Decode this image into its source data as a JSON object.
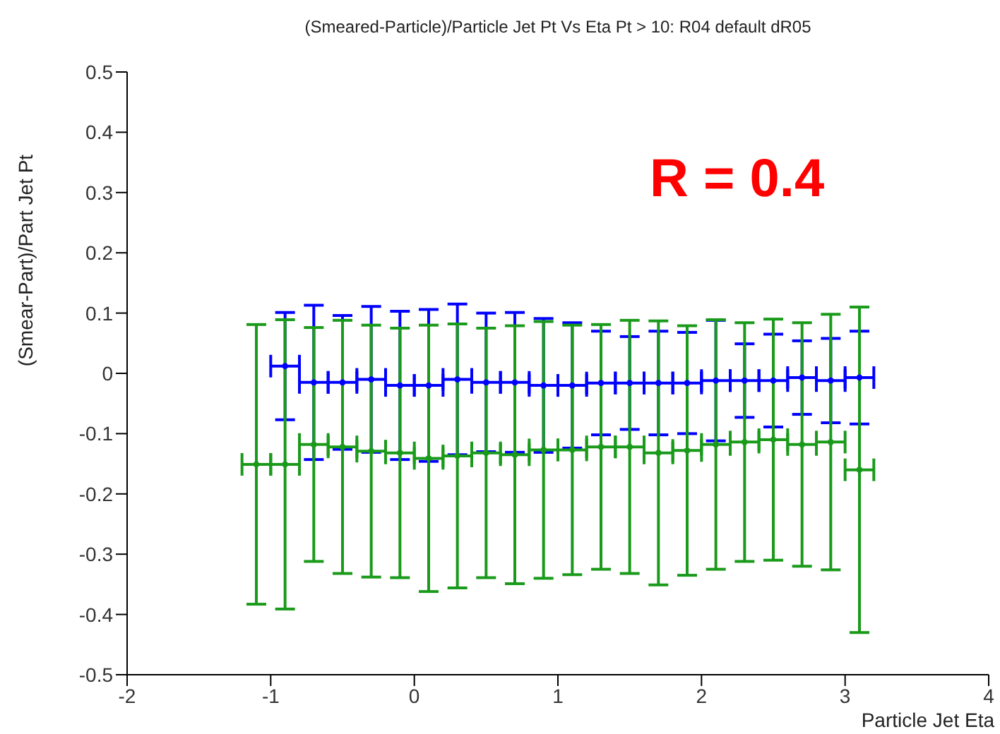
{
  "chart_data": {
    "type": "scatter",
    "title": "(Smeared-Particle)/Particle Jet Pt Vs Eta Pt > 10: R04 default dR05",
    "xlabel": "Particle Jet Eta",
    "ylabel": "(Smear-Part)/Part Jet Pt",
    "annotations": [
      "R = 0.4"
    ],
    "xlim": [
      -2,
      4
    ],
    "xticks": [
      -2,
      -1,
      0,
      1,
      2,
      3,
      4
    ],
    "ylim": [
      -0.5,
      0.5
    ],
    "yticks": [
      -0.5,
      -0.4,
      -0.3,
      -0.2,
      -0.1,
      0,
      0.1,
      0.2,
      0.3,
      0.4,
      0.5
    ],
    "grid": false,
    "legend": false,
    "marker": "circle",
    "series": [
      {
        "color": "#0000ff",
        "x": [
          -0.9,
          -0.7,
          -0.5,
          -0.3,
          -0.1,
          0.1,
          0.3,
          0.5,
          0.7,
          0.9,
          1.1,
          1.3,
          1.5,
          1.7,
          1.9,
          2.1,
          2.3,
          2.5,
          2.7,
          2.9,
          3.1
        ],
        "values": [
          0.012,
          -0.015,
          -0.015,
          -0.01,
          -0.02,
          -0.02,
          -0.01,
          -0.015,
          -0.015,
          -0.02,
          -0.02,
          -0.016,
          -0.016,
          -0.016,
          -0.016,
          -0.012,
          -0.012,
          -0.012,
          -0.007,
          -0.012,
          -0.007
        ],
        "errors": [
          0.089,
          0.128,
          0.111,
          0.121,
          0.123,
          0.126,
          0.125,
          0.115,
          0.116,
          0.111,
          0.104,
          0.086,
          0.077,
          0.086,
          0.084,
          0.1,
          0.061,
          0.077,
          0.061,
          0.07,
          0.077
        ],
        "xerrors": [
          0.1,
          0.1,
          0.1,
          0.1,
          0.1,
          0.1,
          0.1,
          0.1,
          0.1,
          0.1,
          0.1,
          0.1,
          0.1,
          0.1,
          0.1,
          0.1,
          0.1,
          0.1,
          0.1,
          0.1,
          0.1
        ]
      },
      {
        "color": "#1a9a1a",
        "x": [
          -1.1,
          -0.9,
          -0.7,
          -0.5,
          -0.3,
          -0.1,
          0.1,
          0.3,
          0.5,
          0.7,
          0.9,
          1.1,
          1.3,
          1.5,
          1.7,
          1.9,
          2.1,
          2.3,
          2.5,
          2.7,
          2.9,
          3.1
        ],
        "values": [
          -0.151,
          -0.151,
          -0.118,
          -0.122,
          -0.129,
          -0.132,
          -0.141,
          -0.137,
          -0.132,
          -0.135,
          -0.127,
          -0.127,
          -0.122,
          -0.122,
          -0.132,
          -0.128,
          -0.118,
          -0.114,
          -0.11,
          -0.118,
          -0.114,
          -0.16
        ],
        "errors": [
          0.232,
          0.24,
          0.194,
          0.21,
          0.209,
          0.207,
          0.221,
          0.219,
          0.207,
          0.214,
          0.213,
          0.207,
          0.203,
          0.21,
          0.219,
          0.207,
          0.207,
          0.198,
          0.2,
          0.202,
          0.212,
          0.27
        ],
        "xerrors": [
          0.1,
          0.1,
          0.1,
          0.1,
          0.1,
          0.1,
          0.1,
          0.1,
          0.1,
          0.1,
          0.1,
          0.1,
          0.1,
          0.1,
          0.1,
          0.1,
          0.1,
          0.1,
          0.1,
          0.1,
          0.1,
          0.1
        ]
      }
    ]
  }
}
